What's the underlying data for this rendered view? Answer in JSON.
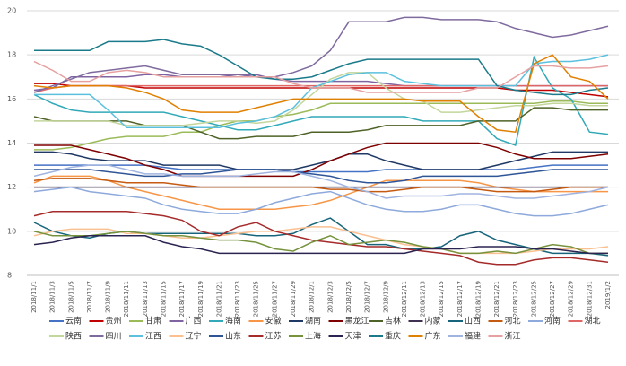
{
  "chart_data": {
    "type": "line",
    "categories": [
      "2018/11/1",
      "2018/11/3",
      "2018/11/5",
      "2018/11/7",
      "2018/11/9",
      "2018/11/11",
      "2018/11/13",
      "2018/11/15",
      "2018/11/17",
      "2018/11/19",
      "2018/11/21",
      "2018/11/23",
      "2018/11/25",
      "2018/11/27",
      "2018/11/29",
      "2018/12/1",
      "2018/12/3",
      "2018/12/5",
      "2018/12/7",
      "2018/12/9",
      "2018/12/11",
      "2018/12/13",
      "2018/12/15",
      "2018/12/17",
      "2018/12/19",
      "2018/12/21",
      "2018/12/23",
      "2018/12/25",
      "2018/12/27",
      "2018/12/29",
      "2018/12/31",
      "2019/1/2"
    ],
    "ylim": [
      8,
      20
    ],
    "yticks": [
      8,
      10,
      12,
      14,
      16,
      18,
      20
    ],
    "grid": true,
    "series": [
      {
        "name": "云南",
        "color": "#4472c4",
        "values": [
          13.0,
          13.0,
          13.0,
          13.0,
          13.0,
          13.0,
          13.0,
          12.9,
          12.8,
          12.8,
          12.8,
          12.8,
          12.8,
          12.8,
          12.7,
          12.7,
          12.7,
          12.7,
          12.7,
          12.8,
          12.8,
          12.8,
          12.8,
          12.8,
          12.8,
          12.8,
          12.8,
          12.9,
          13.0,
          13.0,
          13.0,
          13.0
        ]
      },
      {
        "name": "贵州",
        "color": "#c00000",
        "values": [
          16.7,
          16.7,
          16.6,
          16.6,
          16.6,
          16.6,
          16.5,
          16.5,
          16.5,
          16.5,
          16.5,
          16.5,
          16.5,
          16.5,
          16.5,
          16.5,
          16.5,
          16.5,
          16.5,
          16.5,
          16.5,
          16.5,
          16.5,
          16.5,
          16.5,
          16.5,
          16.4,
          16.4,
          16.4,
          16.3,
          16.2,
          16.1
        ]
      },
      {
        "name": "甘肃",
        "color": "#9bbb59",
        "values": [
          13.7,
          13.7,
          13.8,
          14.0,
          14.2,
          14.3,
          14.3,
          14.3,
          14.5,
          14.5,
          14.8,
          15.0,
          15.0,
          15.2,
          15.3,
          15.5,
          15.8,
          15.8,
          15.8,
          15.8,
          15.8,
          15.8,
          15.8,
          15.8,
          15.8,
          15.8,
          15.8,
          15.8,
          15.9,
          15.9,
          15.8,
          15.8
        ]
      },
      {
        "name": "广西",
        "color": "#8064a2",
        "values": [
          16.4,
          16.5,
          17.0,
          17.0,
          17.0,
          17.0,
          17.1,
          17.1,
          17.0,
          17.0,
          17.0,
          17.1,
          17.1,
          16.9,
          16.8,
          16.8,
          16.8,
          16.8,
          16.8,
          16.7,
          16.6,
          16.6,
          16.6,
          16.6,
          16.6,
          16.6,
          16.6,
          16.6,
          16.6,
          16.6,
          16.6,
          16.6
        ]
      },
      {
        "name": "海南",
        "color": "#31a9b8",
        "values": [
          16.2,
          15.8,
          15.5,
          15.4,
          15.4,
          15.4,
          15.4,
          15.4,
          15.2,
          15.0,
          14.8,
          14.6,
          14.6,
          14.8,
          15.0,
          15.2,
          15.2,
          15.2,
          15.2,
          15.2,
          15.2,
          15.0,
          15.0,
          15.0,
          15.0,
          14.2,
          13.9,
          17.9,
          16.5,
          16.0,
          14.5,
          14.4
        ]
      },
      {
        "name": "安徽",
        "color": "#f79646",
        "values": [
          12.2,
          12.5,
          12.5,
          12.5,
          12.3,
          12.0,
          11.8,
          11.6,
          11.4,
          11.2,
          11.0,
          11.0,
          11.0,
          11.0,
          11.1,
          11.2,
          11.4,
          11.7,
          12.0,
          12.3,
          12.3,
          12.3,
          12.3,
          12.3,
          12.2,
          12.0,
          11.9,
          11.8,
          11.8,
          11.8,
          11.8,
          11.8
        ]
      },
      {
        "name": "湖南",
        "color": "#1f3864",
        "values": [
          13.6,
          13.6,
          13.5,
          13.3,
          13.2,
          13.2,
          13.2,
          13.0,
          13.0,
          13.0,
          13.0,
          12.8,
          12.8,
          12.8,
          12.8,
          13.0,
          13.2,
          13.5,
          13.5,
          13.2,
          13.0,
          12.8,
          12.8,
          12.8,
          12.8,
          13.0,
          13.2,
          13.4,
          13.6,
          13.6,
          13.6,
          13.6
        ]
      },
      {
        "name": "黑龙江",
        "color": "#7f0000",
        "values": [
          13.9,
          13.9,
          13.9,
          13.7,
          13.5,
          13.3,
          13.0,
          12.8,
          12.5,
          12.5,
          12.5,
          12.5,
          12.5,
          12.5,
          12.5,
          12.8,
          13.2,
          13.5,
          13.8,
          14.0,
          14.0,
          14.0,
          14.0,
          14.0,
          14.0,
          13.8,
          13.5,
          13.3,
          13.3,
          13.3,
          13.4,
          13.5
        ]
      },
      {
        "name": "吉林",
        "color": "#4f6228",
        "values": [
          15.2,
          15.0,
          15.0,
          15.0,
          15.0,
          15.0,
          14.8,
          14.8,
          14.8,
          14.5,
          14.2,
          14.2,
          14.3,
          14.3,
          14.3,
          14.5,
          14.5,
          14.5,
          14.6,
          14.8,
          14.8,
          14.8,
          14.8,
          14.8,
          15.0,
          15.0,
          15.0,
          15.6,
          15.6,
          15.5,
          15.5,
          15.5
        ]
      },
      {
        "name": "内蒙",
        "color": "#3f3151",
        "values": [
          12.0,
          12.0,
          12.0,
          12.0,
          12.0,
          12.0,
          12.0,
          12.0,
          12.0,
          12.0,
          12.0,
          12.0,
          12.0,
          12.0,
          12.0,
          12.0,
          12.0,
          12.0,
          12.0,
          12.0,
          12.0,
          12.0,
          12.0,
          12.0,
          12.0,
          12.0,
          12.0,
          12.0,
          12.0,
          12.0,
          12.0,
          12.0
        ]
      },
      {
        "name": "山西",
        "color": "#17657b",
        "values": [
          10.4,
          10.0,
          9.8,
          9.7,
          9.9,
          10.0,
          9.9,
          9.9,
          9.9,
          9.9,
          9.9,
          9.9,
          9.8,
          9.8,
          9.9,
          10.3,
          10.6,
          10.0,
          9.4,
          9.4,
          9.2,
          9.2,
          9.3,
          9.8,
          10.0,
          9.6,
          9.4,
          9.2,
          9.0,
          9.0,
          9.0,
          8.9
        ]
      },
      {
        "name": "河北",
        "color": "#c55a11",
        "values": [
          12.3,
          12.4,
          12.4,
          12.4,
          12.3,
          12.2,
          12.2,
          12.2,
          12.1,
          12.0,
          12.0,
          12.0,
          12.0,
          12.0,
          12.0,
          12.0,
          11.9,
          11.9,
          11.8,
          11.8,
          11.9,
          12.0,
          12.0,
          12.0,
          11.9,
          11.8,
          11.8,
          11.8,
          11.9,
          12.0,
          12.0,
          12.0
        ]
      },
      {
        "name": "河南",
        "color": "#8ea9db",
        "values": [
          11.8,
          11.9,
          12.0,
          11.8,
          11.7,
          11.6,
          11.5,
          11.2,
          11.0,
          10.9,
          10.8,
          10.8,
          11.0,
          11.3,
          11.5,
          11.7,
          11.8,
          11.5,
          11.2,
          11.0,
          10.9,
          10.9,
          11.0,
          11.2,
          11.2,
          11.0,
          10.8,
          10.7,
          10.7,
          10.8,
          11.0,
          11.2
        ]
      },
      {
        "name": "湖北",
        "color": "#e06666",
        "values": [
          16.3,
          16.5,
          16.6,
          16.6,
          16.6,
          16.6,
          16.6,
          16.6,
          16.6,
          16.6,
          16.6,
          16.6,
          16.6,
          16.6,
          16.6,
          16.6,
          16.6,
          16.6,
          16.6,
          16.6,
          16.6,
          16.6,
          16.6,
          16.6,
          16.6,
          16.6,
          16.6,
          16.6,
          16.6,
          16.6,
          16.6,
          16.6
        ]
      },
      {
        "name": "陕西",
        "color": "#c3d69b",
        "values": [
          15.0,
          15.0,
          15.0,
          15.0,
          15.0,
          14.8,
          14.8,
          14.8,
          14.8,
          14.9,
          15.0,
          15.0,
          14.9,
          15.0,
          15.5,
          16.2,
          16.9,
          17.2,
          17.2,
          16.5,
          16.0,
          15.9,
          15.4,
          15.4,
          15.5,
          15.6,
          15.7,
          15.7,
          15.8,
          15.8,
          15.7,
          15.7
        ]
      },
      {
        "name": "四川",
        "color": "#7f6a9e",
        "values": [
          16.3,
          16.6,
          16.9,
          17.2,
          17.3,
          17.4,
          17.5,
          17.3,
          17.1,
          17.1,
          17.1,
          17.1,
          17.0,
          17.0,
          17.2,
          17.5,
          18.2,
          19.5,
          19.5,
          19.5,
          19.7,
          19.7,
          19.6,
          19.6,
          19.6,
          19.5,
          19.2,
          19.0,
          18.8,
          18.9,
          19.1,
          19.3
        ]
      },
      {
        "name": "江西",
        "color": "#5bc0de",
        "values": [
          16.2,
          16.2,
          16.2,
          16.2,
          15.5,
          14.7,
          14.7,
          14.7,
          14.7,
          14.7,
          14.7,
          14.9,
          15.0,
          15.2,
          15.6,
          16.5,
          16.8,
          17.1,
          17.2,
          17.2,
          16.8,
          16.7,
          16.6,
          16.6,
          16.6,
          16.6,
          16.6,
          17.6,
          17.7,
          17.7,
          17.8,
          18.0
        ]
      },
      {
        "name": "辽宁",
        "color": "#fac090",
        "values": [
          9.8,
          10.0,
          10.1,
          10.1,
          10.1,
          9.9,
          9.9,
          9.8,
          9.7,
          9.7,
          9.8,
          9.9,
          10.0,
          10.0,
          10.1,
          10.2,
          10.2,
          10.0,
          9.8,
          9.6,
          9.4,
          9.3,
          9.2,
          9.0,
          9.0,
          9.0,
          9.0,
          9.1,
          9.2,
          9.2,
          9.2,
          9.3
        ]
      },
      {
        "name": "山东",
        "color": "#2f5597",
        "values": [
          12.8,
          12.8,
          12.8,
          12.8,
          12.7,
          12.6,
          12.5,
          12.5,
          12.6,
          12.6,
          12.7,
          12.8,
          12.8,
          12.8,
          12.7,
          12.6,
          12.5,
          12.3,
          12.2,
          12.2,
          12.3,
          12.5,
          12.5,
          12.5,
          12.5,
          12.5,
          12.6,
          12.7,
          12.8,
          12.8,
          12.8,
          12.8
        ]
      },
      {
        "name": "江苏",
        "color": "#a52a2a",
        "values": [
          10.7,
          10.9,
          10.9,
          10.9,
          10.9,
          10.9,
          10.8,
          10.7,
          10.5,
          10.0,
          9.8,
          10.2,
          10.4,
          10.0,
          9.8,
          9.6,
          9.5,
          9.4,
          9.3,
          9.3,
          9.2,
          9.1,
          9.0,
          8.9,
          8.6,
          8.5,
          8.5,
          8.7,
          8.8,
          8.8,
          8.7,
          8.6
        ]
      },
      {
        "name": "上海",
        "color": "#76923c",
        "values": [
          10.0,
          9.8,
          9.8,
          9.8,
          9.9,
          10.0,
          9.9,
          9.8,
          9.8,
          9.7,
          9.6,
          9.6,
          9.5,
          9.2,
          9.1,
          9.5,
          9.8,
          9.4,
          9.5,
          9.6,
          9.5,
          9.3,
          9.2,
          9.0,
          9.0,
          9.1,
          9.0,
          9.2,
          9.4,
          9.3,
          9.0,
          9.0
        ]
      },
      {
        "name": "天津",
        "color": "#2b2350",
        "values": [
          9.4,
          9.5,
          9.7,
          9.8,
          9.8,
          9.8,
          9.8,
          9.5,
          9.3,
          9.2,
          9.0,
          9.0,
          9.0,
          9.0,
          9.0,
          9.0,
          9.0,
          9.0,
          9.0,
          9.0,
          9.0,
          9.2,
          9.2,
          9.2,
          9.3,
          9.3,
          9.3,
          9.2,
          9.2,
          9.1,
          9.0,
          9.0
        ]
      },
      {
        "name": "重庆",
        "color": "#1a7a8a",
        "values": [
          18.2,
          18.2,
          18.2,
          18.2,
          18.6,
          18.6,
          18.6,
          18.7,
          18.5,
          18.4,
          18.0,
          17.5,
          17.0,
          16.9,
          16.9,
          17.0,
          17.3,
          17.6,
          17.8,
          17.8,
          17.8,
          17.8,
          17.8,
          17.8,
          17.8,
          16.6,
          16.4,
          16.3,
          16.2,
          16.2,
          16.4,
          16.5
        ]
      },
      {
        "name": "广东",
        "color": "#e08000",
        "values": [
          16.6,
          16.5,
          16.6,
          16.6,
          16.6,
          16.5,
          16.3,
          16.0,
          15.5,
          15.4,
          15.4,
          15.4,
          15.6,
          15.8,
          16.0,
          16.0,
          16.0,
          16.0,
          16.0,
          16.0,
          16.0,
          15.9,
          15.9,
          15.9,
          15.2,
          14.6,
          14.5,
          17.6,
          18.0,
          17.0,
          16.8,
          16.0
        ]
      },
      {
        "name": "福建",
        "color": "#a0b4e0",
        "values": [
          12.5,
          12.7,
          12.9,
          13.0,
          13.0,
          12.8,
          12.6,
          12.6,
          12.5,
          12.5,
          12.5,
          12.5,
          12.6,
          12.7,
          12.7,
          12.5,
          12.3,
          12.0,
          11.8,
          11.5,
          11.6,
          11.6,
          11.6,
          11.7,
          11.7,
          11.6,
          11.5,
          11.5,
          11.6,
          11.7,
          11.8,
          12.0
        ]
      },
      {
        "name": "浙江",
        "color": "#e6a0a0",
        "values": [
          17.7,
          17.3,
          16.8,
          16.8,
          17.2,
          17.3,
          17.2,
          17.0,
          17.0,
          17.0,
          17.0,
          17.0,
          17.0,
          17.0,
          16.7,
          16.5,
          16.5,
          16.5,
          16.3,
          16.3,
          16.3,
          16.3,
          16.3,
          16.3,
          16.5,
          16.5,
          17.0,
          17.5,
          17.5,
          17.4,
          17.4,
          17.5
        ]
      }
    ]
  }
}
